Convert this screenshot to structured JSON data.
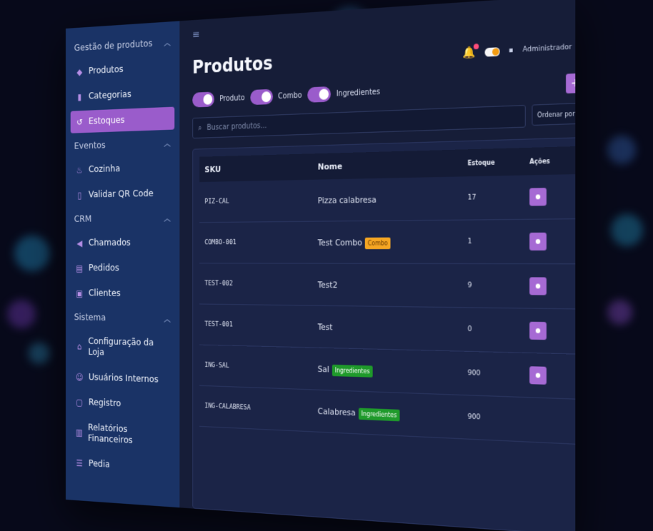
{
  "sidebar": {
    "groups": [
      {
        "title": "Gestão de produtos",
        "items": [
          {
            "label": "Produtos",
            "icon": "tag-icon"
          },
          {
            "label": "Categorias",
            "icon": "bookmark-icon"
          },
          {
            "label": "Estoques",
            "icon": "history-icon",
            "active": true
          }
        ]
      },
      {
        "title": "Eventos",
        "items": [
          {
            "label": "Cozinha",
            "icon": "chef-icon"
          },
          {
            "label": "Validar QR Code",
            "icon": "phone-icon"
          }
        ]
      },
      {
        "title": "CRM",
        "items": [
          {
            "label": "Chamados",
            "icon": "megaphone-icon"
          },
          {
            "label": "Pedidos",
            "icon": "receipt-icon"
          },
          {
            "label": "Clientes",
            "icon": "contact-icon"
          }
        ]
      },
      {
        "title": "Sistema",
        "items": [
          {
            "label": "Configuração da Loja",
            "icon": "store-icon"
          },
          {
            "label": "Usuários Internos",
            "icon": "users-icon"
          },
          {
            "label": "Registro",
            "icon": "register-icon"
          },
          {
            "label": "Relatórios Financeiros",
            "icon": "report-icon"
          },
          {
            "label": "Pedia",
            "icon": "database-icon"
          }
        ]
      }
    ]
  },
  "topbar": {
    "menu_icon": "≡"
  },
  "header": {
    "title": "Produtos",
    "user_label": "Administrador",
    "notification_count": 1
  },
  "filters": {
    "produto": "Produto",
    "combo": "Combo",
    "ingredientes": "Ingredientes",
    "add": "+"
  },
  "search": {
    "placeholder": "Buscar produtos...",
    "order_label": "Ordenar por"
  },
  "table": {
    "headers": {
      "sku": "SKU",
      "nome": "Nome",
      "estoque": "Estoque",
      "acoes": "Ações"
    },
    "rows": [
      {
        "sku": "PIZ-CAL",
        "nome": "Pizza calabresa",
        "badge": "",
        "estoque": "17"
      },
      {
        "sku": "COMBO-001",
        "nome": "Test Combo",
        "badge": "Combo",
        "estoque": "1"
      },
      {
        "sku": "TEST-002",
        "nome": "Test2",
        "badge": "",
        "estoque": "9"
      },
      {
        "sku": "TEST-001",
        "nome": "Test",
        "badge": "",
        "estoque": "0"
      },
      {
        "sku": "ING-SAL",
        "nome": "Sal",
        "badge": "Ingredientes",
        "estoque": "900"
      },
      {
        "sku": "ING-CALABRESA",
        "nome": "Calabresa",
        "badge": "Ingredientes",
        "estoque": "900"
      }
    ]
  },
  "colors": {
    "accent": "#9a5ccb",
    "sidebar_bg": "#1a3366",
    "combo_badge": "#f5a623",
    "ingredient_badge": "#1f9a2b"
  }
}
